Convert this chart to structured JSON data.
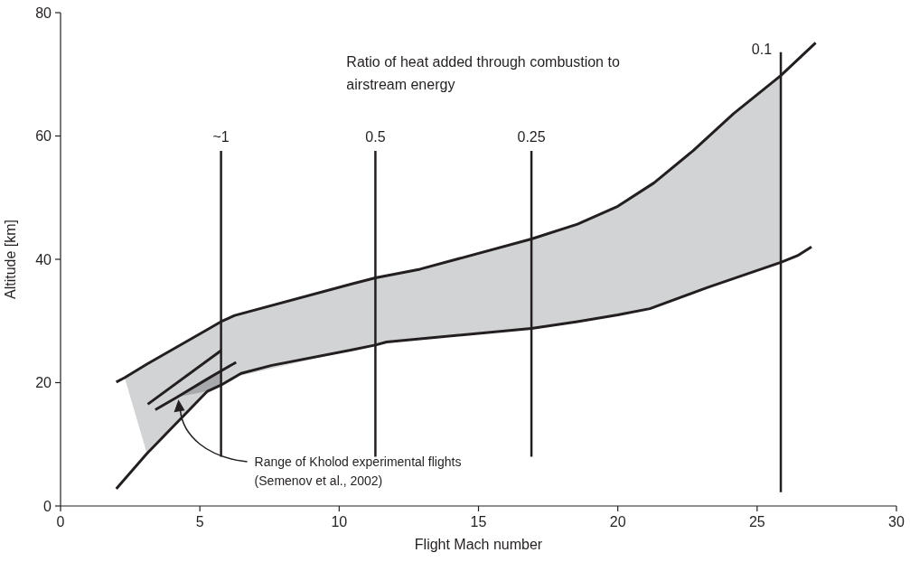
{
  "chart_data": {
    "type": "line",
    "xlabel": "Flight Mach number",
    "ylabel": "Altitude [km]",
    "xlim": [
      0,
      30
    ],
    "xticks": [
      0,
      5,
      10,
      15,
      20,
      25,
      30
    ],
    "ylim": [
      0,
      80
    ],
    "yticks": [
      0,
      20,
      40,
      60,
      80
    ],
    "grid": false,
    "marker": "none",
    "line_style": "solid",
    "series": [
      {
        "color": "#231f20",
        "x": [
          2.0,
          2.3,
          3.1,
          5.27,
          5.76,
          6.25,
          10.45,
          11.3,
          12.9,
          16.9,
          18.55,
          20.0,
          21.3,
          22.7,
          24.15,
          25.85,
          27.1
        ],
        "values": [
          20.1,
          20.8,
          23.0,
          28.6,
          29.9,
          30.9,
          36.0,
          37.0,
          38.4,
          43.3,
          45.7,
          48.6,
          52.4,
          57.6,
          63.6,
          69.8,
          75.1
        ],
        "upper": [
          null,
          20.8,
          23.0,
          28.6,
          29.9,
          30.9,
          36.0,
          37.0,
          38.4,
          43.3,
          45.7,
          48.6,
          52.4,
          57.6,
          63.6,
          69.8,
          null
        ],
        "lower": [
          null,
          20.8,
          8.5,
          18.6,
          19.6,
          20.9,
          25.3,
          26.1,
          27.1,
          28.8,
          29.9,
          31.0,
          32.2,
          34.6,
          36.9,
          39.5,
          null
        ]
      },
      {
        "color": "#231f20",
        "x": [
          2.0,
          3.1,
          5.27,
          5.76,
          6.48,
          7.58,
          10.45,
          11.3,
          11.7,
          16.9,
          18.55,
          20.0,
          21.15,
          23.2,
          25.85,
          26.45,
          26.95
        ],
        "values": [
          2.8,
          8.5,
          18.6,
          19.6,
          21.5,
          22.8,
          25.3,
          26.1,
          26.6,
          28.8,
          29.9,
          31.0,
          32.0,
          35.4,
          39.5,
          40.6,
          42.0
        ]
      },
      {
        "color": "#231f20",
        "x": [
          3.13,
          5.76
        ],
        "values": [
          16.5,
          25.2
        ]
      },
      {
        "color": "#231f20",
        "x": [
          3.4,
          4.2,
          5.27,
          5.76,
          6.3
        ],
        "values": [
          15.6,
          17.7,
          20.6,
          21.9,
          23.3
        ],
        "upper": [
          null,
          17.7,
          20.6,
          21.9,
          null
        ],
        "lower": [
          null,
          17.7,
          18.6,
          19.6,
          null
        ]
      }
    ],
    "ref_lines": [
      {
        "axis": "x",
        "value": 5.76,
        "color": "#231f20"
      },
      {
        "axis": "x",
        "value": 11.3,
        "color": "#231f20"
      },
      {
        "axis": "x",
        "value": 16.9,
        "color": "#231f20"
      },
      {
        "axis": "x",
        "value": 25.85,
        "color": "#231f20"
      }
    ],
    "annotations": [
      "Ratio of heat added through combustion to\nairstream energy",
      "Range of Kholod experimental flights\n(Semenov et al., 2002)",
      "~1",
      "0.5",
      "0.25",
      "0.1"
    ]
  }
}
